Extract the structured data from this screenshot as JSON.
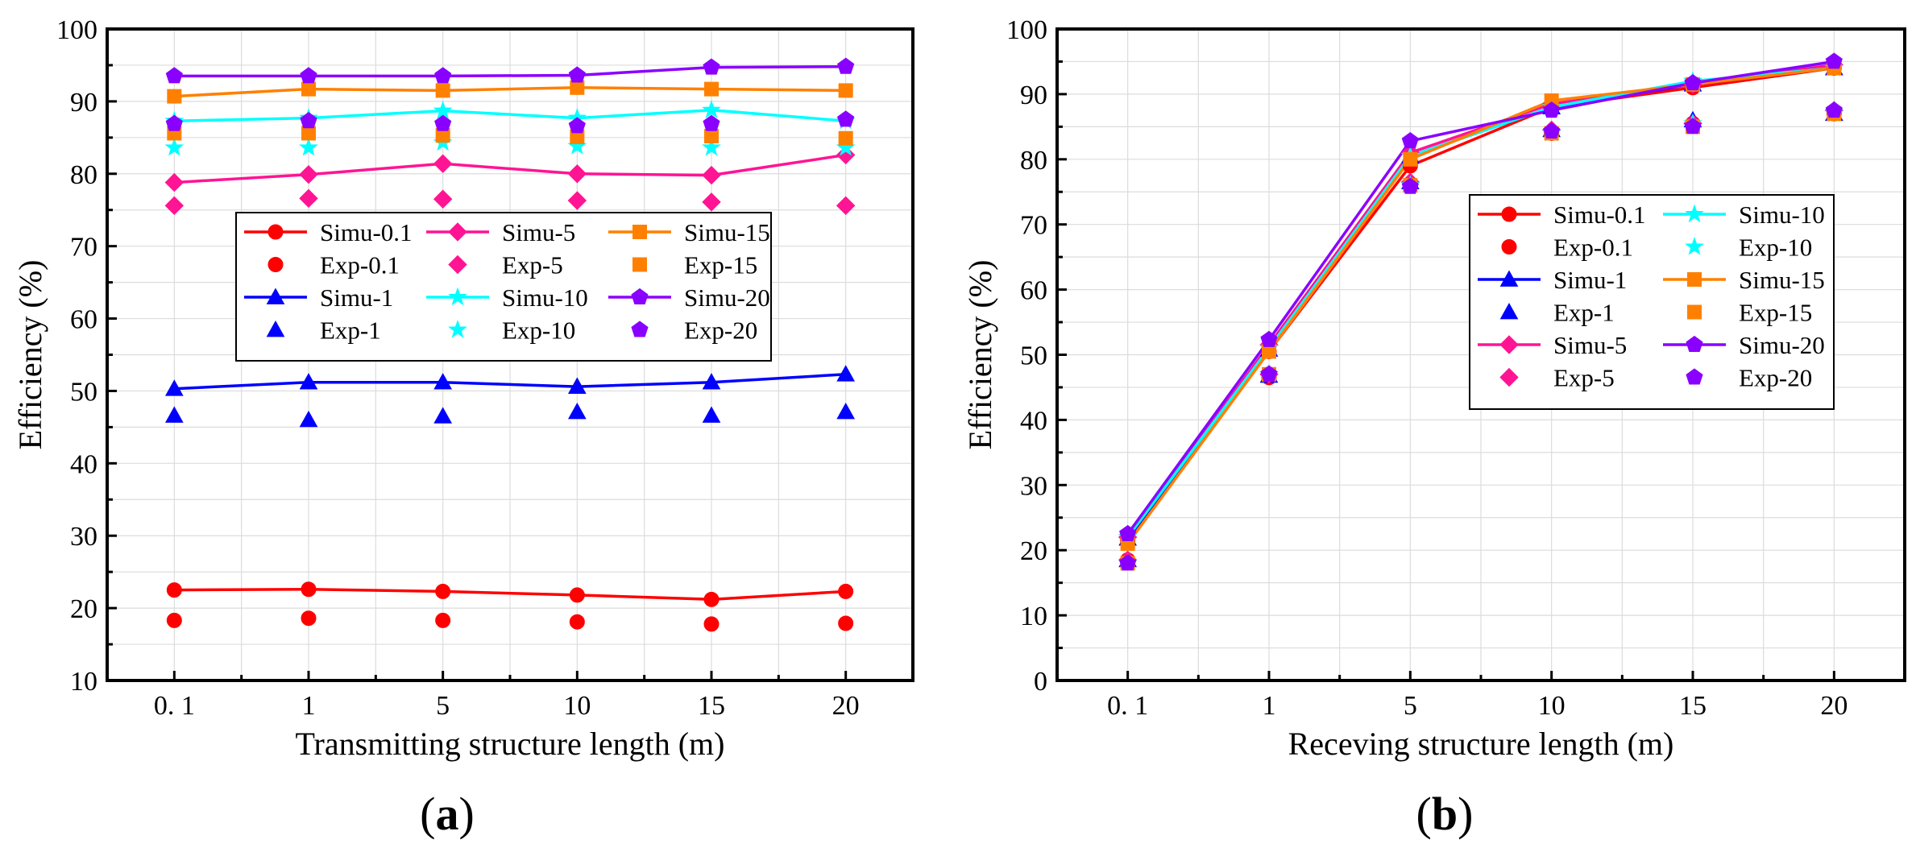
{
  "colors": {
    "Simu-0.1": "#ff0000",
    "Simu-1": "#0000ff",
    "Simu-5": "#ff1493",
    "Simu-10": "#00ffff",
    "Simu-15": "#ff8000",
    "Simu-20": "#8a00ff"
  },
  "chart_data": [
    {
      "type": "line",
      "panel_label": "(a)",
      "panel_letter": "a",
      "xlabel": "Transmitting structure length (m)",
      "ylabel": "Efficiency (%)",
      "categories": [
        "0. 1",
        "1",
        "5",
        "10",
        "15",
        "20"
      ],
      "ylim": [
        10,
        100
      ],
      "yticks": [
        10,
        20,
        30,
        40,
        50,
        60,
        70,
        80,
        90,
        100
      ],
      "grid": true,
      "legend_position": "center",
      "legend_order": [
        [
          "Simu-0.1",
          "Simu-5",
          "Simu-15"
        ],
        [
          "Exp-0.1",
          "Exp-5",
          "Exp-15"
        ],
        [
          "Simu-1",
          "Simu-10",
          "Simu-20"
        ],
        [
          "Exp-1",
          "Exp-10",
          "Exp-20"
        ]
      ],
      "series": [
        {
          "name": "Simu-0.1",
          "kind": "simu",
          "marker": "circle",
          "color_key": "Simu-0.1",
          "values": [
            22.5,
            22.6,
            22.3,
            21.8,
            21.2,
            22.3
          ]
        },
        {
          "name": "Exp-0.1",
          "kind": "exp",
          "marker": "circle",
          "color_key": "Simu-0.1",
          "values": [
            18.3,
            18.6,
            18.3,
            18.1,
            17.8,
            17.9
          ]
        },
        {
          "name": "Simu-1",
          "kind": "simu",
          "marker": "triangle",
          "color_key": "Simu-1",
          "values": [
            50.3,
            51.2,
            51.2,
            50.6,
            51.2,
            52.3
          ]
        },
        {
          "name": "Exp-1",
          "kind": "exp",
          "marker": "triangle",
          "color_key": "Simu-1",
          "values": [
            46.6,
            46.0,
            46.5,
            47.1,
            46.6,
            47.1
          ]
        },
        {
          "name": "Simu-5",
          "kind": "simu",
          "marker": "diamond",
          "color_key": "Simu-5",
          "values": [
            78.8,
            79.9,
            81.4,
            80.0,
            79.8,
            82.6
          ]
        },
        {
          "name": "Exp-5",
          "kind": "exp",
          "marker": "diamond",
          "color_key": "Simu-5",
          "values": [
            75.6,
            76.6,
            76.5,
            76.3,
            76.1,
            75.6
          ]
        },
        {
          "name": "Simu-10",
          "kind": "simu",
          "marker": "star",
          "color_key": "Simu-10",
          "values": [
            87.3,
            87.7,
            88.7,
            87.7,
            88.8,
            87.3
          ]
        },
        {
          "name": "Exp-10",
          "kind": "exp",
          "marker": "star",
          "color_key": "Simu-10",
          "values": [
            83.6,
            83.6,
            84.3,
            83.8,
            83.6,
            83.6
          ]
        },
        {
          "name": "Simu-15",
          "kind": "simu",
          "marker": "square",
          "color_key": "Simu-15",
          "values": [
            90.7,
            91.7,
            91.5,
            91.9,
            91.7,
            91.5
          ]
        },
        {
          "name": "Exp-15",
          "kind": "exp",
          "marker": "square",
          "color_key": "Simu-15",
          "values": [
            85.6,
            85.6,
            85.3,
            85.1,
            85.2,
            84.9
          ]
        },
        {
          "name": "Simu-20",
          "kind": "simu",
          "marker": "pentagon",
          "color_key": "Simu-20",
          "values": [
            93.5,
            93.5,
            93.5,
            93.6,
            94.7,
            94.8
          ]
        },
        {
          "name": "Exp-20",
          "kind": "exp",
          "marker": "pentagon",
          "color_key": "Simu-20",
          "values": [
            86.9,
            87.3,
            86.9,
            86.6,
            86.9,
            87.5
          ]
        }
      ]
    },
    {
      "type": "line",
      "panel_label": "(b)",
      "panel_letter": "b",
      "xlabel": "Receving structure length (m)",
      "ylabel": "Efficiency (%)",
      "categories": [
        "0. 1",
        "1",
        "5",
        "10",
        "15",
        "20"
      ],
      "ylim": [
        0,
        100
      ],
      "yticks": [
        0,
        10,
        20,
        30,
        40,
        50,
        60,
        70,
        80,
        90,
        100
      ],
      "grid": true,
      "legend_position": "right",
      "legend_order": [
        [
          "Simu-0.1",
          "Simu-10"
        ],
        [
          "Exp-0.1",
          "Exp-10"
        ],
        [
          "Simu-1",
          "Simu-15"
        ],
        [
          "Exp-1",
          "Exp-15"
        ],
        [
          "Simu-5",
          "Simu-20"
        ],
        [
          "Exp-5",
          "Exp-20"
        ]
      ],
      "series": [
        {
          "name": "Simu-0.1",
          "kind": "simu",
          "marker": "circle",
          "color_key": "Simu-0.1",
          "values": [
            21.5,
            50.5,
            79.0,
            88.0,
            91.0,
            94.0
          ]
        },
        {
          "name": "Exp-0.1",
          "kind": "exp",
          "marker": "circle",
          "color_key": "Simu-0.1",
          "values": [
            18.5,
            46.5,
            76.0,
            84.0,
            85.5,
            87.0
          ]
        },
        {
          "name": "Simu-1",
          "kind": "simu",
          "marker": "triangle",
          "color_key": "Simu-1",
          "values": [
            21.8,
            50.8,
            80.5,
            88.0,
            91.5,
            94.0
          ]
        },
        {
          "name": "Exp-1",
          "kind": "exp",
          "marker": "triangle",
          "color_key": "Simu-1",
          "values": [
            18.5,
            46.8,
            76.5,
            84.5,
            86.0,
            87.0
          ]
        },
        {
          "name": "Simu-5",
          "kind": "simu",
          "marker": "diamond",
          "color_key": "Simu-5",
          "values": [
            22.0,
            51.5,
            81.0,
            88.5,
            91.5,
            94.5
          ]
        },
        {
          "name": "Exp-5",
          "kind": "exp",
          "marker": "diamond",
          "color_key": "Simu-5",
          "values": [
            18.5,
            47.0,
            76.5,
            84.5,
            85.5,
            87.5
          ]
        },
        {
          "name": "Simu-10",
          "kind": "simu",
          "marker": "star",
          "color_key": "Simu-10",
          "values": [
            22.0,
            51.0,
            80.5,
            88.0,
            92.0,
            94.0
          ]
        },
        {
          "name": "Exp-10",
          "kind": "exp",
          "marker": "star",
          "color_key": "Simu-10",
          "values": [
            18.0,
            47.0,
            76.0,
            84.0,
            85.5,
            87.0
          ]
        },
        {
          "name": "Simu-15",
          "kind": "simu",
          "marker": "square",
          "color_key": "Simu-15",
          "values": [
            21.0,
            50.5,
            80.0,
            89.0,
            91.5,
            94.0
          ]
        },
        {
          "name": "Exp-15",
          "kind": "exp",
          "marker": "square",
          "color_key": "Simu-15",
          "values": [
            18.0,
            47.0,
            76.0,
            84.0,
            85.0,
            87.0
          ]
        },
        {
          "name": "Simu-20",
          "kind": "simu",
          "marker": "pentagon",
          "color_key": "Simu-20",
          "values": [
            22.5,
            52.3,
            82.8,
            87.5,
            91.7,
            95.0
          ]
        },
        {
          "name": "Exp-20",
          "kind": "exp",
          "marker": "pentagon",
          "color_key": "Simu-20",
          "values": [
            18.0,
            47.0,
            75.8,
            84.3,
            85.0,
            87.5
          ]
        }
      ]
    }
  ]
}
